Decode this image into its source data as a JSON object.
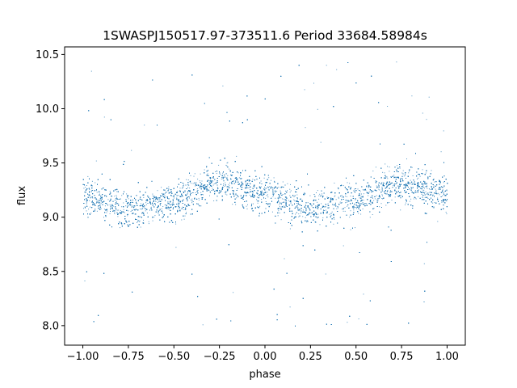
{
  "chart_data": {
    "type": "scatter",
    "title": "1SWASPJ150517.97-373511.6 Period 33684.58984s",
    "xlabel": "phase",
    "ylabel": "flux",
    "xlim": [
      -1.1,
      1.1
    ],
    "ylim": [
      7.82,
      10.57
    ],
    "xticks": [
      -1.0,
      -0.75,
      -0.5,
      -0.25,
      0.0,
      0.25,
      0.5,
      0.75,
      1.0
    ],
    "xtick_labels": [
      "−1.00",
      "−0.75",
      "−0.50",
      "−0.25",
      "0.00",
      "0.25",
      "0.50",
      "0.75",
      "1.00"
    ],
    "yticks": [
      8.0,
      8.5,
      9.0,
      9.5,
      10.0,
      10.5
    ],
    "ytick_labels": [
      "8.0",
      "8.5",
      "9.0",
      "9.5",
      "10.0",
      "10.5"
    ],
    "grid": false,
    "legend": "none",
    "series": [
      {
        "color": "#1f77b4",
        "marker_size": 1,
        "description_of_trend": "dense periodic band",
        "x_range": [
          -1.0,
          1.0
        ],
        "y_center_curve": {
          "phase": [
            -1.0,
            -0.75,
            -0.5,
            -0.25,
            0.0,
            0.25,
            0.5,
            0.75,
            1.0
          ],
          "flux": [
            9.2,
            9.08,
            9.15,
            9.33,
            9.22,
            9.08,
            9.17,
            9.32,
            9.22
          ]
        },
        "y_band_halfwidth": 0.22,
        "y_outlier_range": [
          7.97,
          10.47
        ]
      }
    ]
  },
  "colors": {
    "points": "#1f77b4",
    "axes": "#000000",
    "background": "#ffffff"
  }
}
